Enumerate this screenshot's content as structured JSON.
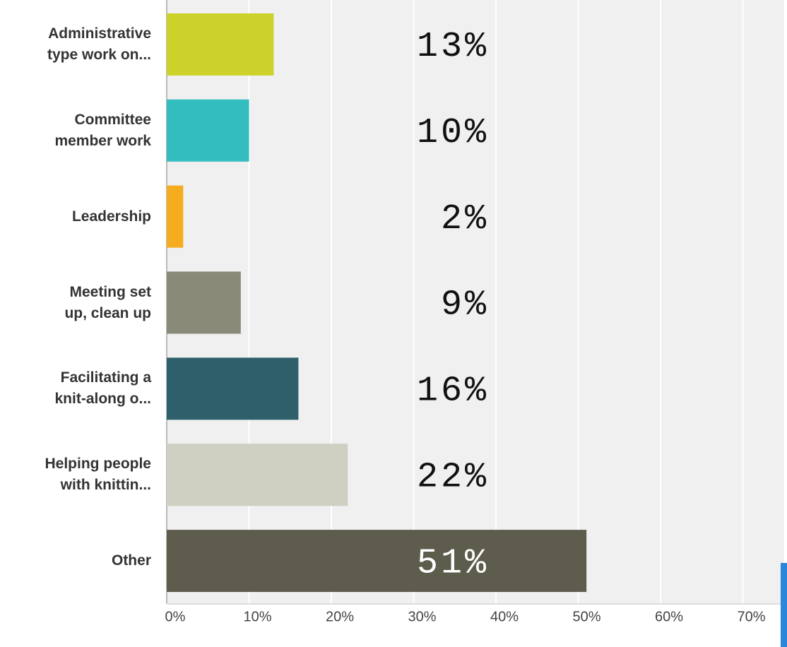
{
  "chart_data": {
    "type": "hbar",
    "categories": [
      "Administrative\ntype work on...",
      "Committee\nmember work",
      "Leadership",
      "Meeting set\nup, clean up",
      "Facilitating a\nknit-along o...",
      "Helping people\nwith knittin...",
      "Other"
    ],
    "values": [
      13,
      10,
      2,
      9,
      16,
      22,
      51
    ],
    "value_labels": [
      "13%",
      "10%",
      "2%",
      "9%",
      "16%",
      "22%",
      "51%"
    ],
    "colors": [
      "#cdd22a",
      "#33bdbf",
      "#f5ac1f",
      "#898a78",
      "#2e5f6b",
      "#cfcfc2",
      "#5e5c4c"
    ],
    "xlim": [
      0,
      75
    ],
    "xticks": [
      {
        "value": 0,
        "label": "0%"
      },
      {
        "value": 10,
        "label": "10%"
      },
      {
        "value": 20,
        "label": "20%"
      },
      {
        "value": 30,
        "label": "30%"
      },
      {
        "value": 40,
        "label": "40%"
      },
      {
        "value": 50,
        "label": "50%"
      },
      {
        "value": 60,
        "label": "60%"
      },
      {
        "value": 70,
        "label": "70%"
      }
    ],
    "grid": true
  }
}
